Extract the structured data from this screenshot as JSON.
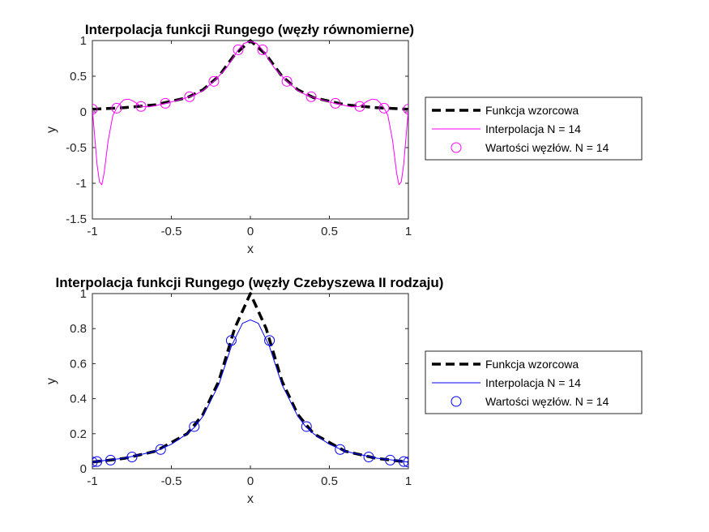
{
  "chart_data": [
    {
      "type": "line",
      "title": "Interpolacja funkcji Rungego (węzły równomierne)",
      "xlabel": "x",
      "ylabel": "y",
      "xlim": [
        -1,
        1
      ],
      "ylim": [
        -1.5,
        1
      ],
      "xticks": [
        -1,
        -0.5,
        0,
        0.5,
        1
      ],
      "xtick_labels": [
        "-1",
        "-0.5",
        "0",
        "0.5",
        "1"
      ],
      "yticks": [
        -1.5,
        -1,
        -0.5,
        0,
        0.5,
        1
      ],
      "ytick_labels": [
        "-1.5",
        "-1",
        "-0.5",
        "0",
        "0.5",
        "1"
      ],
      "grid": false,
      "legend_position": "right",
      "series": [
        {
          "name": "Funkcja wzorcowa",
          "style": "dashed",
          "color": "#000000",
          "x": [
            -1,
            -0.8,
            -0.6,
            -0.4,
            -0.3,
            -0.2,
            -0.1,
            0,
            0.1,
            0.2,
            0.3,
            0.4,
            0.6,
            0.8,
            1
          ],
          "y": [
            0.038,
            0.059,
            0.1,
            0.2,
            0.31,
            0.5,
            0.8,
            1.0,
            0.8,
            0.5,
            0.31,
            0.2,
            0.1,
            0.059,
            0.038
          ]
        },
        {
          "name": "Interpolacja N = 14",
          "style": "solid",
          "color": "#ff00ff",
          "x": [
            -1,
            -0.985,
            -0.97,
            -0.955,
            -0.94,
            -0.925,
            -0.9,
            -0.87,
            -0.846,
            -0.82,
            -0.8,
            -0.77,
            -0.74,
            -0.692,
            -0.64,
            -0.6,
            -0.538,
            -0.5,
            -0.45,
            -0.385,
            -0.35,
            -0.3,
            -0.231,
            -0.2,
            -0.15,
            -0.077,
            -0.04,
            0,
            0.04,
            0.077,
            0.15,
            0.2,
            0.231,
            0.3,
            0.35,
            0.385,
            0.45,
            0.5,
            0.538,
            0.6,
            0.64,
            0.692,
            0.74,
            0.77,
            0.8,
            0.82,
            0.846,
            0.87,
            0.9,
            0.925,
            0.94,
            0.955,
            0.97,
            0.985,
            1
          ],
          "y": [
            0.038,
            -0.35,
            -0.75,
            -0.98,
            -1.02,
            -0.85,
            -0.4,
            -0.05,
            0.055,
            0.13,
            0.17,
            0.18,
            0.15,
            0.077,
            0.07,
            0.09,
            0.118,
            0.14,
            0.17,
            0.213,
            0.24,
            0.3,
            0.428,
            0.5,
            0.62,
            0.87,
            0.96,
            0.99,
            0.96,
            0.87,
            0.62,
            0.5,
            0.428,
            0.3,
            0.24,
            0.213,
            0.17,
            0.14,
            0.118,
            0.09,
            0.07,
            0.077,
            0.15,
            0.18,
            0.17,
            0.13,
            0.055,
            -0.05,
            -0.4,
            -0.85,
            -1.02,
            -0.98,
            -0.75,
            -0.35,
            0.038
          ]
        },
        {
          "name": "Wartości węzłów. N = 14",
          "style": "markers",
          "marker": "circle",
          "color": "#ff00ff",
          "x": [
            -1,
            -0.846,
            -0.692,
            -0.538,
            -0.385,
            -0.231,
            -0.077,
            0.077,
            0.231,
            0.385,
            0.538,
            0.692,
            0.846,
            1
          ],
          "y": [
            0.038,
            0.053,
            0.077,
            0.121,
            0.213,
            0.428,
            0.871,
            0.871,
            0.428,
            0.213,
            0.121,
            0.077,
            0.053,
            0.038
          ]
        }
      ]
    },
    {
      "type": "line",
      "title": "Interpolacja funkcji Rungego (węzły Czebyszewa II rodzaju)",
      "xlabel": "x",
      "ylabel": "y",
      "xlim": [
        -1,
        1
      ],
      "ylim": [
        0,
        1
      ],
      "xticks": [
        -1,
        -0.5,
        0,
        0.5,
        1
      ],
      "xtick_labels": [
        "-1",
        "-0.5",
        "0",
        "0.5",
        "1"
      ],
      "yticks": [
        0,
        0.2,
        0.4,
        0.6,
        0.8,
        1
      ],
      "ytick_labels": [
        "0",
        "0.2",
        "0.4",
        "0.6",
        "0.8",
        "1"
      ],
      "grid": false,
      "legend_position": "right",
      "series": [
        {
          "name": "Funkcja wzorcowa",
          "style": "dashed",
          "color": "#000000",
          "x": [
            -1,
            -0.8,
            -0.6,
            -0.4,
            -0.3,
            -0.2,
            -0.1,
            0,
            0.1,
            0.2,
            0.3,
            0.4,
            0.6,
            0.8,
            1
          ],
          "y": [
            0.038,
            0.059,
            0.1,
            0.2,
            0.31,
            0.5,
            0.8,
            1.0,
            0.8,
            0.5,
            0.31,
            0.2,
            0.1,
            0.059,
            0.038
          ]
        },
        {
          "name": "Interpolacja N = 14",
          "style": "solid",
          "color": "#0000ff",
          "x": [
            -1,
            -0.9,
            -0.8,
            -0.7,
            -0.6,
            -0.5,
            -0.4,
            -0.35,
            -0.3,
            -0.2,
            -0.12,
            -0.05,
            0,
            0.05,
            0.12,
            0.2,
            0.3,
            0.35,
            0.4,
            0.5,
            0.6,
            0.7,
            0.8,
            0.9,
            1
          ],
          "y": [
            0.038,
            0.05,
            0.06,
            0.08,
            0.1,
            0.14,
            0.2,
            0.24,
            0.3,
            0.48,
            0.7,
            0.83,
            0.85,
            0.83,
            0.7,
            0.48,
            0.3,
            0.24,
            0.2,
            0.14,
            0.1,
            0.08,
            0.06,
            0.05,
            0.038
          ]
        },
        {
          "name": "Wartości węzłów. N = 14",
          "style": "markers",
          "marker": "circle",
          "color": "#0000ff",
          "x": [
            -1,
            -0.971,
            -0.885,
            -0.749,
            -0.568,
            -0.355,
            -0.121,
            0.121,
            0.355,
            0.568,
            0.749,
            0.885,
            0.971,
            1
          ],
          "y": [
            0.038,
            0.041,
            0.049,
            0.067,
            0.11,
            0.241,
            0.732,
            0.732,
            0.241,
            0.11,
            0.067,
            0.049,
            0.041,
            0.038
          ]
        }
      ]
    }
  ]
}
